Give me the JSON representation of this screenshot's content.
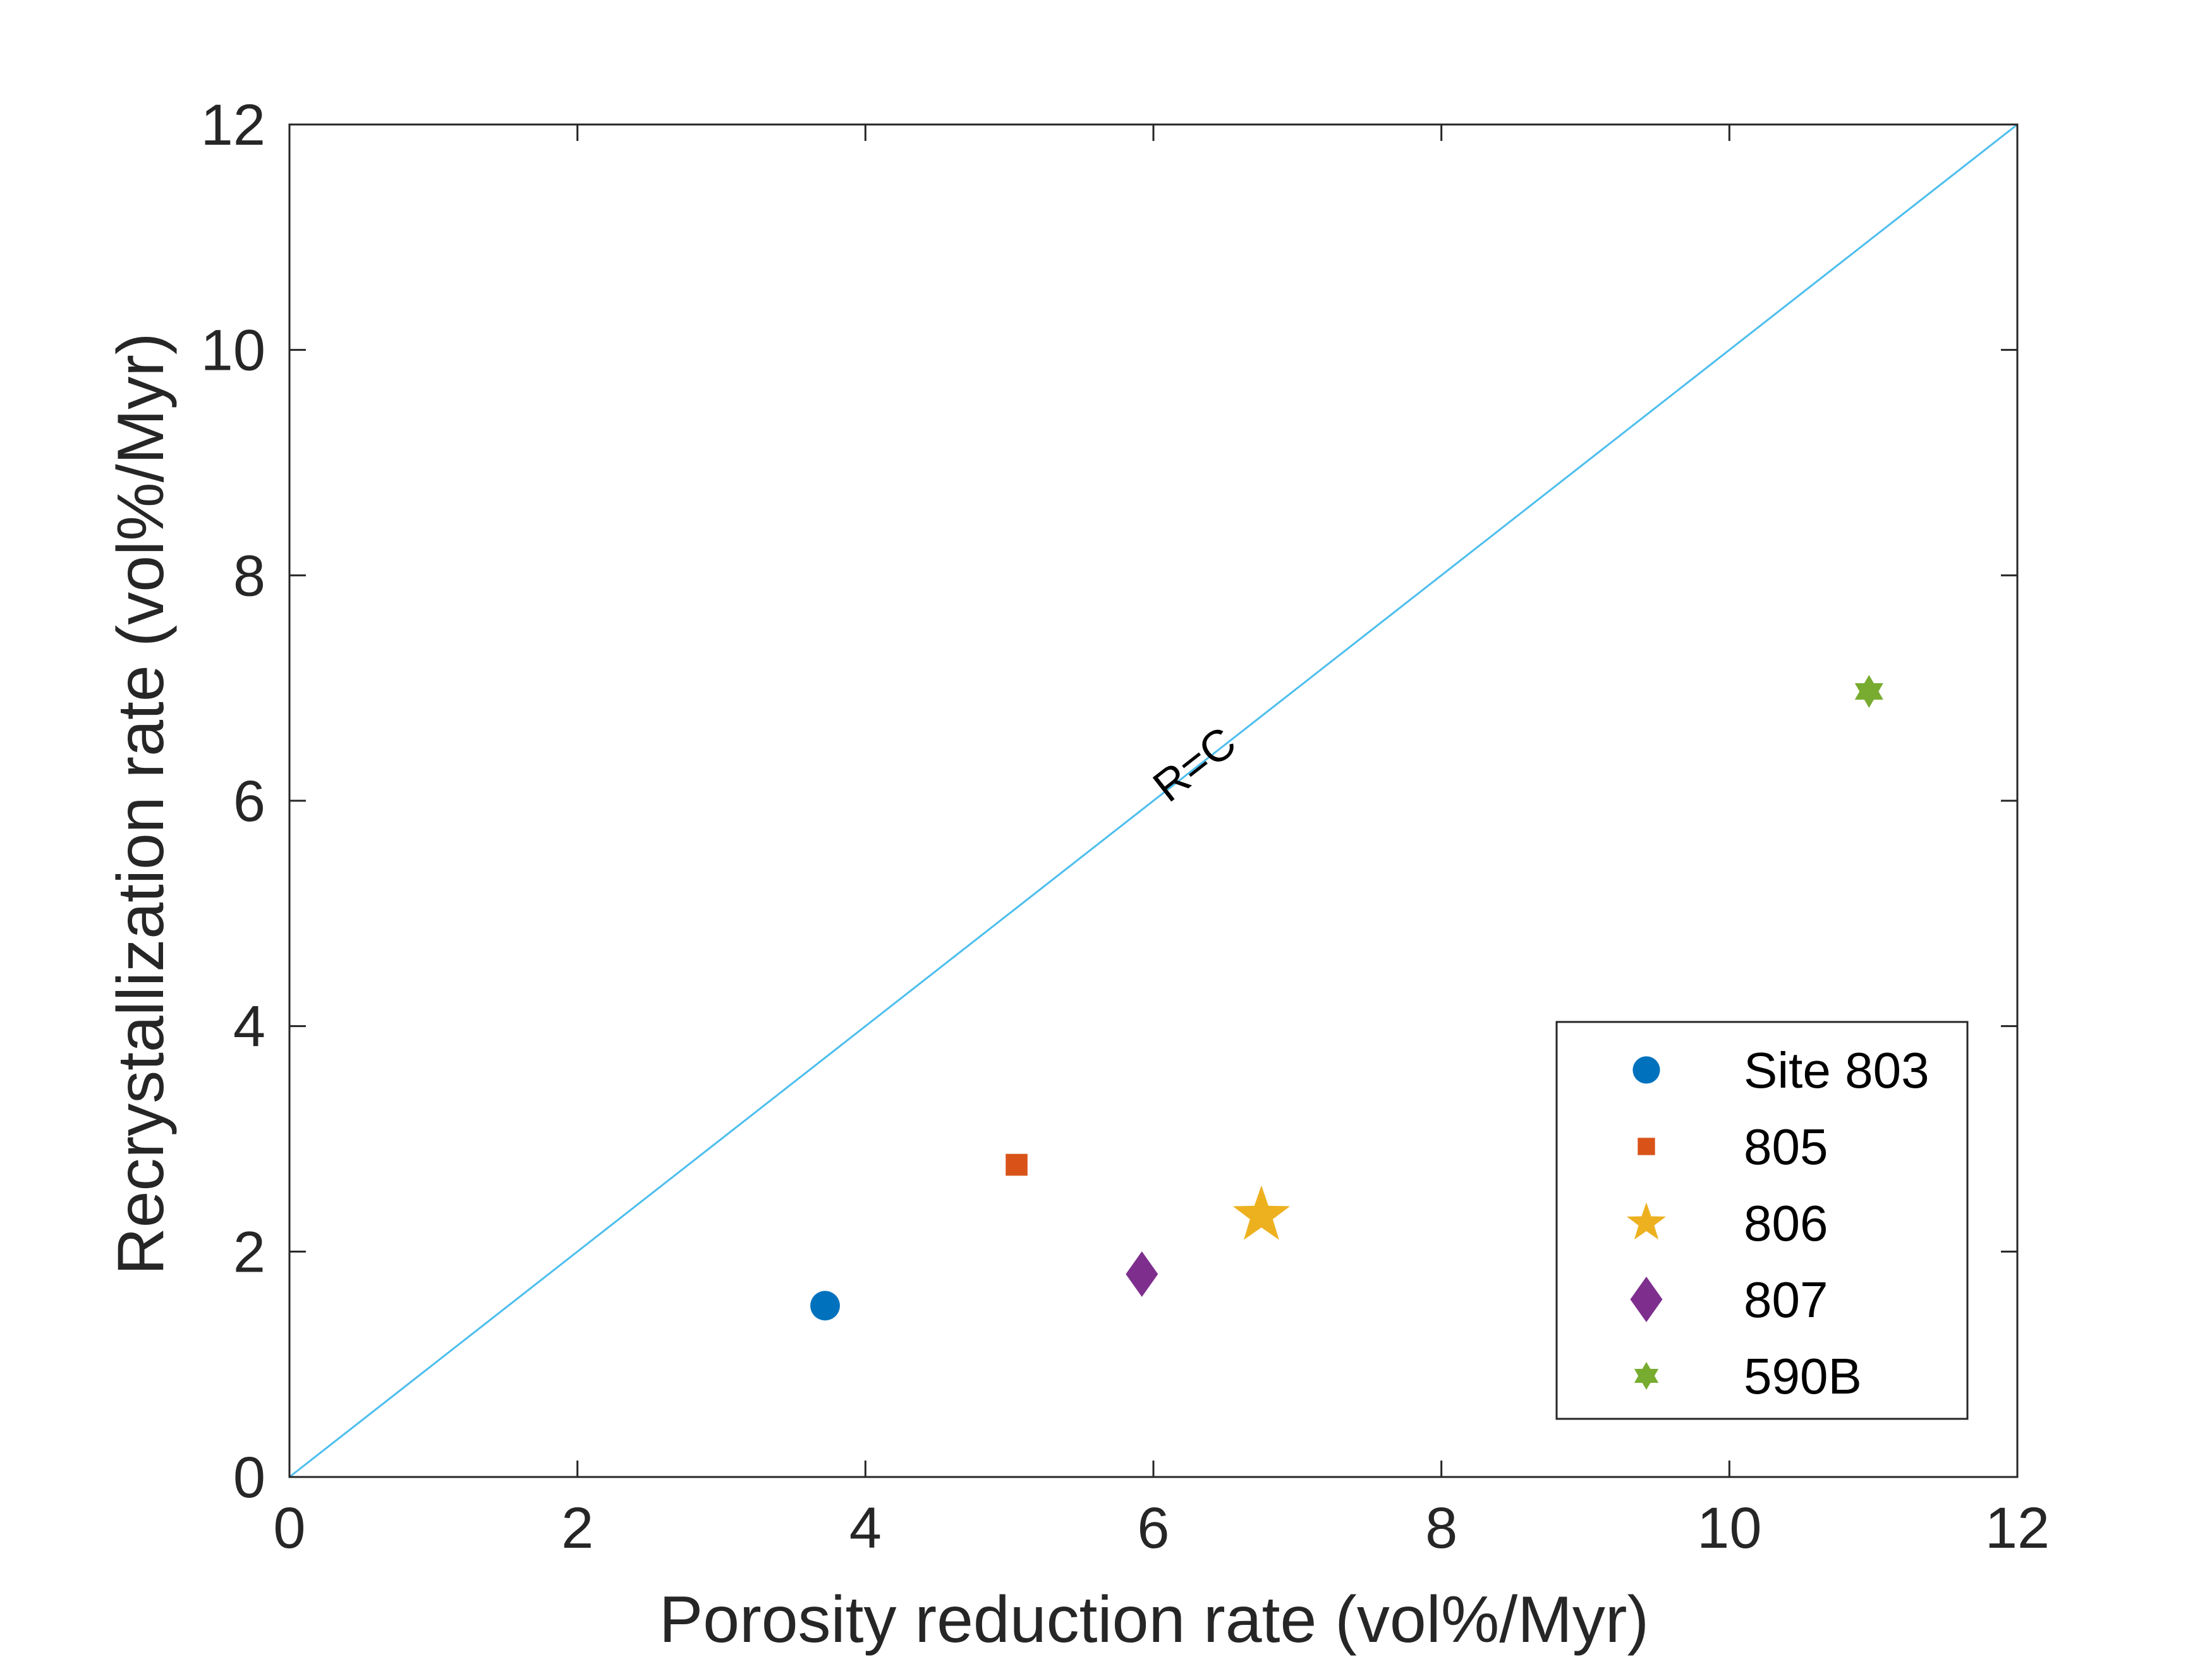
{
  "chart_data": {
    "type": "scatter",
    "xlabel": "Porosity reduction rate (vol%/Myr)",
    "ylabel": "Recrystallization rate (vol%/Myr)",
    "xlim": [
      0,
      12
    ],
    "ylim": [
      0,
      12
    ],
    "xticks": [
      "0",
      "2",
      "4",
      "6",
      "8",
      "10",
      "12"
    ],
    "yticks": [
      "0",
      "2",
      "4",
      "6",
      "8",
      "10",
      "12"
    ],
    "grid": false,
    "legend_position": "bottom-right",
    "reference_line": {
      "label": "R=C",
      "from": [
        0,
        0
      ],
      "to": [
        12,
        12
      ],
      "label_at": [
        6.3,
        6.3
      ],
      "color": "#4DBEEE"
    },
    "series": [
      {
        "name": "Site 803",
        "marker": "circle",
        "color": "#0072BD",
        "points": [
          [
            3.72,
            1.52
          ]
        ]
      },
      {
        "name": "805",
        "marker": "square",
        "color": "#D95319",
        "points": [
          [
            5.05,
            2.77
          ]
        ]
      },
      {
        "name": "806",
        "marker": "star",
        "color": "#EDB120",
        "points": [
          [
            6.75,
            2.32
          ]
        ]
      },
      {
        "name": "807",
        "marker": "diamond",
        "color": "#7E2F8E",
        "points": [
          [
            5.92,
            1.8
          ]
        ]
      },
      {
        "name": "590B",
        "marker": "hexagram",
        "color": "#77AC30",
        "points": [
          [
            10.97,
            6.97
          ]
        ]
      }
    ]
  }
}
